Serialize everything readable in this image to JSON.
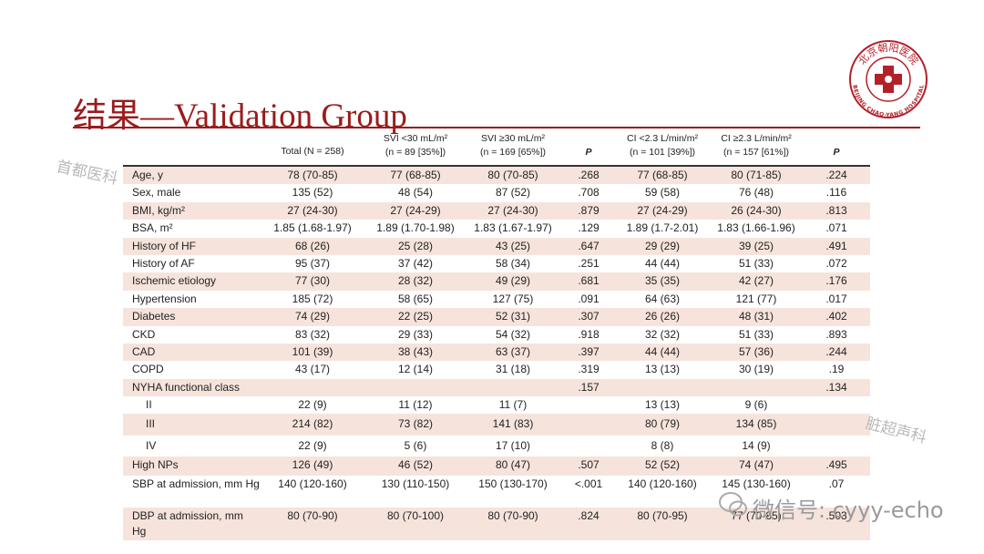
{
  "title": "结果—Validation Group",
  "logo": {
    "top_text": "北京朝阳医院",
    "bottom_text": "BEIJING CHAO-YANG HOSPITAL"
  },
  "watermarks": [
    "首都医科",
    "脏超声科",
    "微信号: cyyy-echo"
  ],
  "table": {
    "header": [
      [
        "Total (N = 258)"
      ],
      [
        "SVI <30 mL/m²",
        "(n = 89 [35%])"
      ],
      [
        "SVI ≥30 mL/m²",
        "(n = 169 [65%])"
      ],
      [
        "P"
      ],
      [
        "CI <2.3 L/min/m²",
        "(n = 101 [39%])"
      ],
      [
        "CI ≥2.3 L/min/m²",
        "(n = 157 [61%])"
      ],
      [
        "P"
      ]
    ],
    "rows": [
      [
        "Age, y",
        "78 (70-85)",
        "77 (68-85)",
        "80 (70-85)",
        ".268",
        "77 (68-85)",
        "80 (71-85)",
        ".224"
      ],
      [
        "Sex, male",
        "135 (52)",
        "48 (54)",
        "87 (52)",
        ".708",
        "59 (58)",
        "76 (48)",
        ".116"
      ],
      [
        "BMI, kg/m²",
        "27 (24-30)",
        "27 (24-29)",
        "27 (24-30)",
        ".879",
        "27 (24-29)",
        "26 (24-30)",
        ".813"
      ],
      [
        "BSA, m²",
        "1.85 (1.68-1.97)",
        "1.89 (1.70-1.98)",
        "1.83 (1.67-1.97)",
        ".129",
        "1.89 (1.7-2.01)",
        "1.83 (1.66-1.96)",
        ".071"
      ],
      [
        "History of HF",
        "68 (26)",
        "25 (28)",
        "43 (25)",
        ".647",
        "29 (29)",
        "39 (25)",
        ".491"
      ],
      [
        "History of AF",
        "95 (37)",
        "37 (42)",
        "58 (34)",
        ".251",
        "44 (44)",
        "51 (33)",
        ".072"
      ],
      [
        "Ischemic etiology",
        "77 (30)",
        "28 (32)",
        "49 (29)",
        ".681",
        "35 (35)",
        "42 (27)",
        ".176"
      ],
      [
        "Hypertension",
        "185 (72)",
        "58 (65)",
        "127 (75)",
        ".091",
        "64 (63)",
        "121 (77)",
        ".017"
      ],
      [
        "Diabetes",
        "74 (29)",
        "22 (25)",
        "52 (31)",
        ".307",
        "26 (26)",
        "48 (31)",
        ".402"
      ],
      [
        "CKD",
        "83 (32)",
        "29 (33)",
        "54 (32)",
        ".918",
        "32 (32)",
        "51 (33)",
        ".893"
      ],
      [
        "CAD",
        "101 (39)",
        "38 (43)",
        "63 (37)",
        ".397",
        "44 (44)",
        "57 (36)",
        ".244"
      ],
      [
        "COPD",
        "43 (17)",
        "12 (14)",
        "31 (18)",
        ".319",
        "13 (13)",
        "30 (19)",
        ".19"
      ],
      [
        "NYHA functional class",
        null,
        null,
        null,
        ".157",
        null,
        null,
        ".134"
      ],
      [
        "II",
        "22 (9)",
        "11 (12)",
        "11 (7)",
        null,
        "13 (13)",
        "9 (6)",
        null
      ],
      [
        "III",
        "214 (82)",
        "73 (82)",
        "141 (83)",
        null,
        "80 (79)",
        "134 (85)",
        null
      ],
      [
        "IV",
        "22 (9)",
        "5 (6)",
        "17 (10)",
        null,
        "8 (8)",
        "14 (9)",
        null
      ],
      [
        "High NPs",
        "126 (49)",
        "46 (52)",
        "80 (47)",
        ".507",
        "52 (52)",
        "74 (47)",
        ".495"
      ],
      [
        "SBP at admission, mm Hg",
        "140 (120-160)",
        "130 (110-150)",
        "150 (130-170)",
        "<.001",
        "140 (120-160)",
        "145 (130-160)",
        ".07"
      ],
      [
        "DBP at admission, mm Hg",
        "80 (70-90)",
        "80 (70-100)",
        "80 (70-90)",
        ".824",
        "80 (70-95)",
        "77 (70-85)",
        ".503"
      ]
    ]
  }
}
